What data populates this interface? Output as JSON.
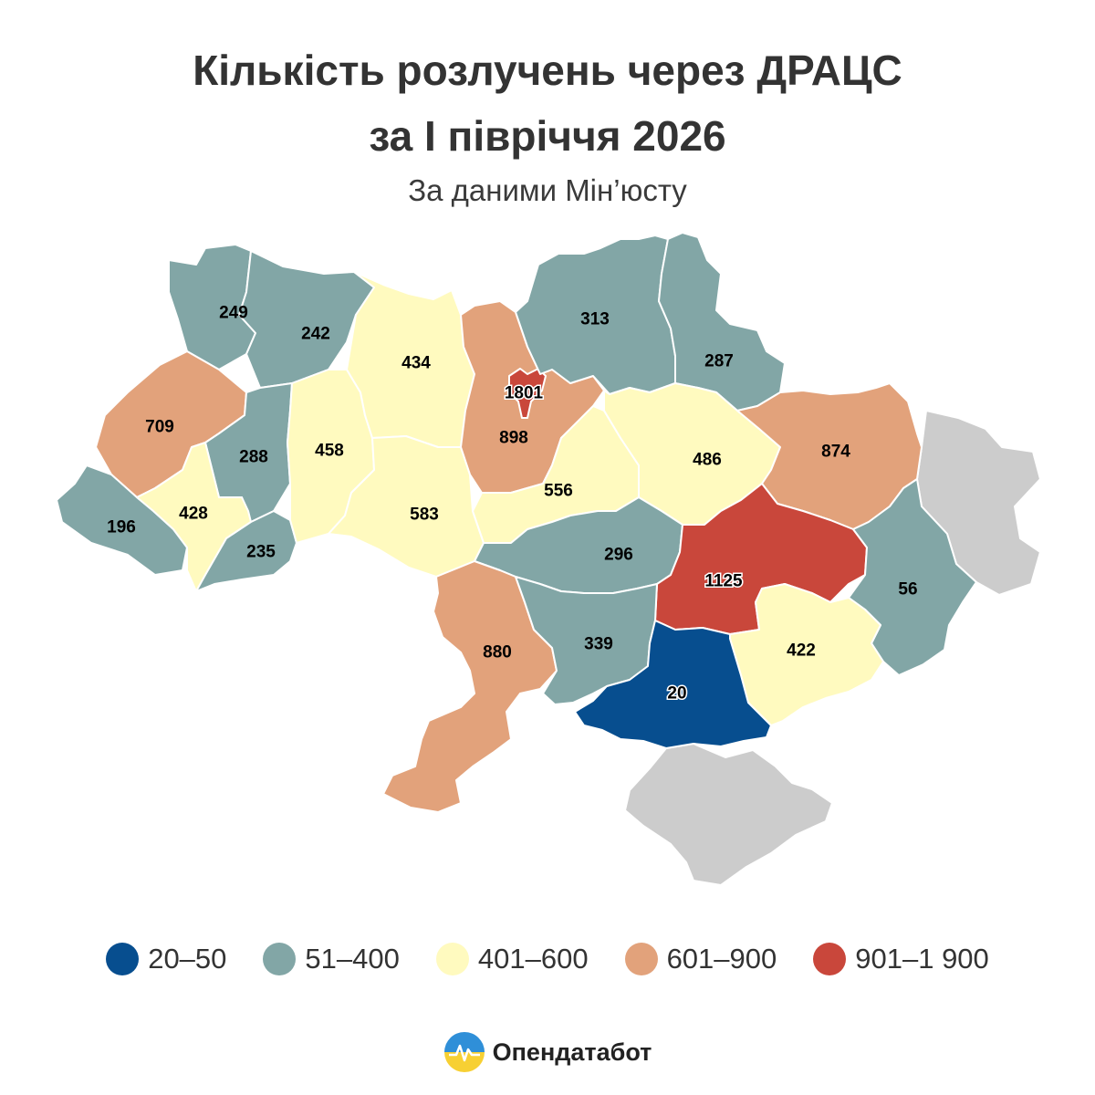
{
  "title_line1": "Кількість розлучень через ДРАЦС",
  "title_line2": "за І півріччя 2026",
  "subtitle": "За даними Мін’юсту",
  "colors": {
    "c1": "#074e8f",
    "c2": "#82a6a6",
    "c3": "#fffabf",
    "c4": "#e2a27b",
    "c5": "#c9473b",
    "nodata": "#cccccc"
  },
  "legend": [
    {
      "label": "20–50",
      "color": "#074e8f"
    },
    {
      "label": "51–400",
      "color": "#82a6a6"
    },
    {
      "label": "401–600",
      "color": "#fffabf"
    },
    {
      "label": "601–900",
      "color": "#e2a27b"
    },
    {
      "label": "901–1 900",
      "color": "#c9473b"
    }
  ],
  "chart_data": {
    "type": "choropleth",
    "regions": [
      {
        "value": "249"
      },
      {
        "value": "242"
      },
      {
        "value": "709"
      },
      {
        "value": "288"
      },
      {
        "value": "428"
      },
      {
        "value": "196"
      },
      {
        "value": "235"
      },
      {
        "value": "458"
      },
      {
        "value": "434"
      },
      {
        "value": "583"
      },
      {
        "value": "1801"
      },
      {
        "value": "898"
      },
      {
        "value": "313"
      },
      {
        "value": "287"
      },
      {
        "value": "556"
      },
      {
        "value": "486"
      },
      {
        "value": "874"
      },
      {
        "value": "296"
      },
      {
        "value": "1125"
      },
      {
        "value": "56"
      },
      {
        "value": "880"
      },
      {
        "value": "339"
      },
      {
        "value": "20"
      },
      {
        "value": "422"
      }
    ]
  },
  "brand": {
    "name": "Опендатабот"
  }
}
